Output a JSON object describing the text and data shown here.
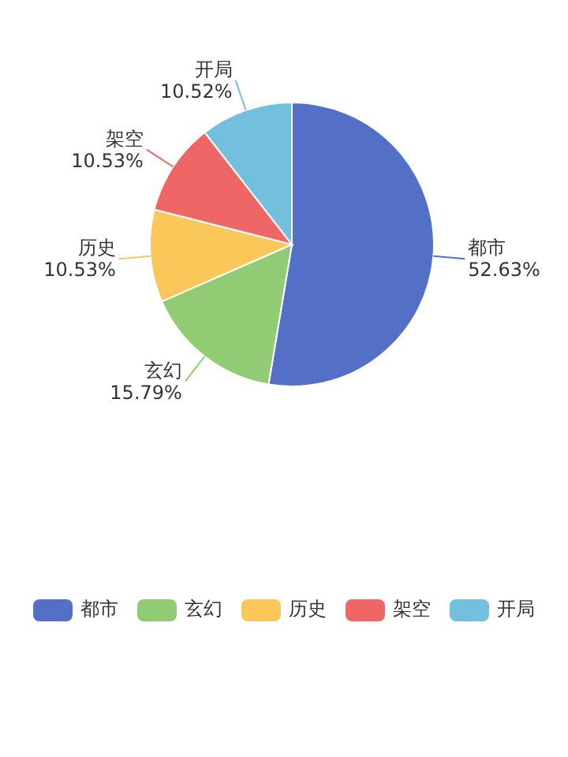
{
  "chart_data": {
    "type": "pie",
    "categories": [
      "都市",
      "玄幻",
      "历史",
      "架空",
      "开局"
    ],
    "values": [
      52.63,
      15.79,
      10.53,
      10.53,
      10.52
    ],
    "colors": [
      "#5470c6",
      "#91cc75",
      "#fac858",
      "#ee6666",
      "#73c0de"
    ],
    "value_labels": [
      "52.63%",
      "15.79%",
      "10.53%",
      "10.53%",
      "10.52%"
    ],
    "legend": "bottom"
  }
}
